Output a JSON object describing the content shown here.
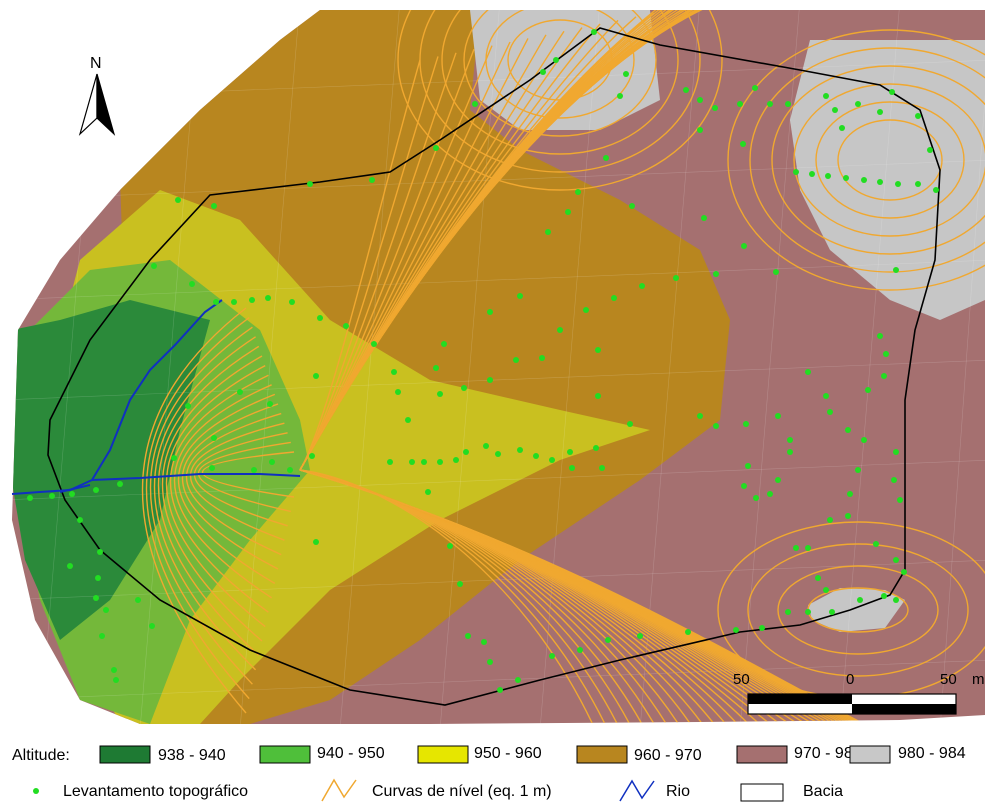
{
  "north_arrow": {
    "label": "N"
  },
  "scale_bar": {
    "labels": [
      "50",
      "0",
      "50"
    ],
    "unit": "m"
  },
  "legend": {
    "altitude_title": "Altitude:",
    "altitude_classes": [
      {
        "label": "938 - 940",
        "color": "#1e7a33"
      },
      {
        "label": "940 - 950",
        "color": "#4fbf3a"
      },
      {
        "label": "950 - 960",
        "color": "#e6e600"
      },
      {
        "label": "960 - 970",
        "color": "#b8861f"
      },
      {
        "label": "970 - 980",
        "color": "#a57070"
      },
      {
        "label": "980 - 984",
        "color": "#c8c8c8"
      }
    ],
    "symbols": [
      {
        "label": "Levantamento topográfico",
        "icon": "green-dot-icon",
        "color": "#22dd22"
      },
      {
        "label": "Curvas de nível (eq. 1 m)",
        "icon": "orange-contour-icon",
        "color": "#f0a830"
      },
      {
        "label": "Rio",
        "icon": "blue-river-icon",
        "color": "#1030c0"
      },
      {
        "label": "Bacia",
        "icon": "black-outline-box-icon",
        "color": "#000000"
      }
    ]
  }
}
